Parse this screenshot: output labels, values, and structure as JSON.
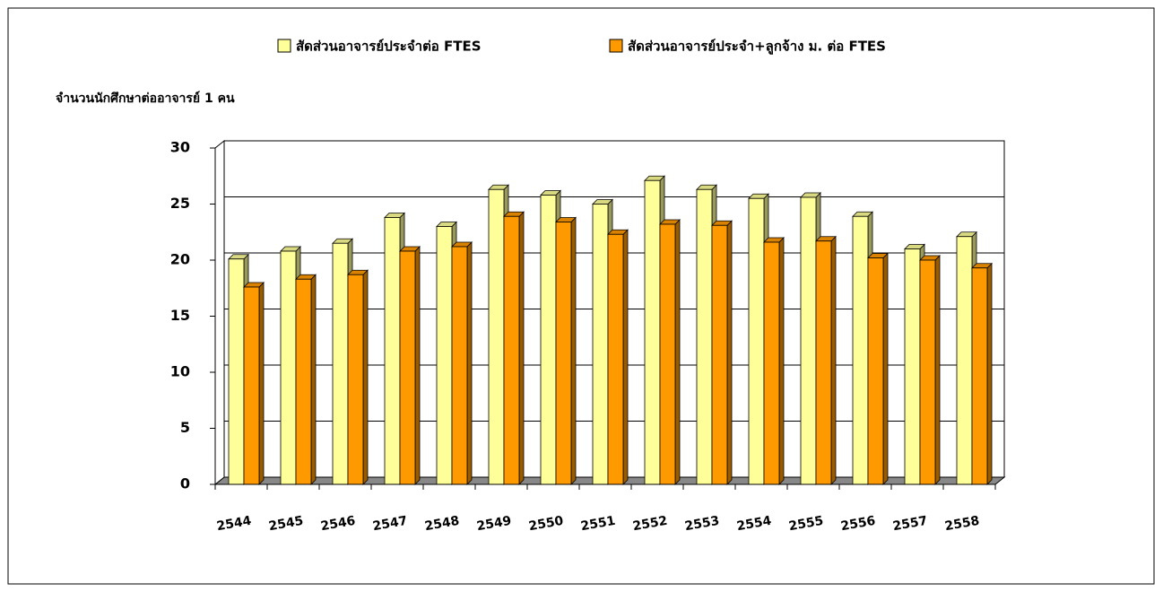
{
  "chart_data": {
    "type": "bar3d",
    "y_axis_label": "จำนวนนักศึกษาต่ออาจารย์ 1 คน",
    "categories": [
      "2544",
      "2545",
      "2546",
      "2547",
      "2548",
      "2549",
      "2550",
      "2551",
      "2552",
      "2553",
      "2554",
      "2555",
      "2556",
      "2557",
      "2558"
    ],
    "series": [
      {
        "name": "สัดส่วนอาจารย์ประจำต่อ FTES",
        "color": "#ffff99",
        "values": [
          20.1,
          20.8,
          21.5,
          23.8,
          23.0,
          26.3,
          25.8,
          25.0,
          27.1,
          26.3,
          25.5,
          25.6,
          23.9,
          21.0,
          22.1
        ]
      },
      {
        "name": "สัดส่วนอาจารย์ประจำ+ลูกจ้าง ม. ต่อ FTES",
        "color": "#ff9900",
        "values": [
          17.6,
          18.3,
          18.7,
          20.8,
          21.2,
          23.9,
          23.4,
          22.3,
          23.2,
          23.1,
          21.6,
          21.7,
          20.2,
          20.0,
          19.3
        ]
      }
    ],
    "ylim": [
      0,
      30
    ],
    "yticks": [
      0,
      5,
      10,
      15,
      20,
      25,
      30
    ],
    "grid": true
  }
}
